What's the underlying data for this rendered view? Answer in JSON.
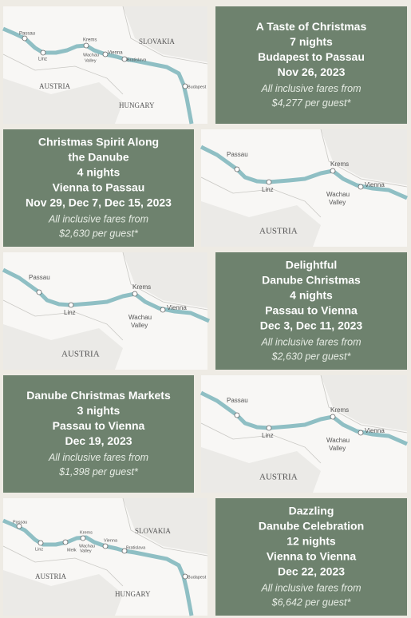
{
  "tours": [
    {
      "card": {
        "lines": [
          "A Taste of Christmas",
          "7 nights",
          "Budapest to Passau",
          "Nov 26, 2023"
        ],
        "fare": [
          "All inclusive fares from",
          "$4,277 per guest*"
        ]
      },
      "map": {
        "labels": [
          "Passau",
          "Linz",
          "Krems",
          "Wachau",
          "Valley",
          "Vienna",
          "Bratislava",
          "Budapest",
          "SLOVAKIA",
          "AUSTRIA",
          "HUNGARY"
        ]
      }
    },
    {
      "card": {
        "lines": [
          "Christmas Spirit Along",
          "the Danube",
          "4 nights",
          "Vienna to Passau",
          "Nov 29, Dec 7, Dec 15, 2023"
        ],
        "fare": [
          "All inclusive fares from",
          "$2,630 per guest*"
        ]
      },
      "map": {
        "labels": [
          "Passau",
          "Linz",
          "Krems",
          "Wachau",
          "Valley",
          "Vienna",
          "AUSTRIA"
        ]
      }
    },
    {
      "card": {
        "lines": [
          "Delightful",
          "Danube Christmas",
          "4 nights",
          "Passau to Vienna",
          "Dec 3, Dec 11, 2023"
        ],
        "fare": [
          "All inclusive fares from",
          "$2,630 per guest*"
        ]
      },
      "map": {
        "labels": [
          "Passau",
          "Linz",
          "Krems",
          "Wachau",
          "Valley",
          "Vienna",
          "AUSTRIA"
        ]
      }
    },
    {
      "card": {
        "lines": [
          "Danube Christmas Markets",
          "3 nights",
          "Passau to Vienna",
          "Dec 19, 2023"
        ],
        "fare": [
          "All inclusive fares from",
          "$1,398 per guest*"
        ]
      },
      "map": {
        "labels": [
          "Passau",
          "Linz",
          "Krems",
          "Wachau",
          "Valley",
          "Vienna",
          "AUSTRIA"
        ]
      }
    },
    {
      "card": {
        "lines": [
          "Dazzling",
          "Danube Celebration",
          "12 nights",
          "Vienna to Vienna",
          "Dec 22, 2023"
        ],
        "fare": [
          "All inclusive fares from",
          "$6,642 per guest*"
        ]
      },
      "map": {
        "labels": [
          "Passau",
          "Linz",
          "Melk",
          "Krems",
          "Wachau",
          "Valley",
          "Vienna",
          "Bratislava",
          "Budapest",
          "SLOVAKIA",
          "AUSTRIA",
          "HUNGARY"
        ]
      }
    }
  ]
}
